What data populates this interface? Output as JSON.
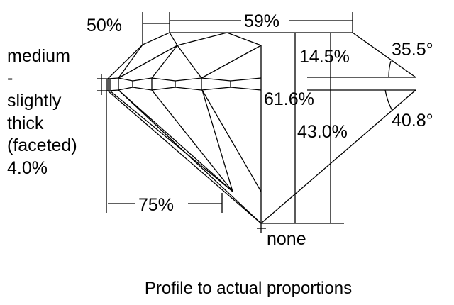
{
  "labels": {
    "table_pct": "59%",
    "star_length": "50%",
    "crown_height": "14.5%",
    "crown_angle": "35.5°",
    "total_depth": "61.6%",
    "pavilion_depth": "43.0%",
    "pavilion_angle": "40.8°",
    "lower_half": "75%",
    "culet": "none",
    "girdle": [
      "medium",
      "-",
      "slightly",
      "thick",
      "(faceted)",
      "4.0%"
    ]
  },
  "caption": "Profile to actual proportions"
}
